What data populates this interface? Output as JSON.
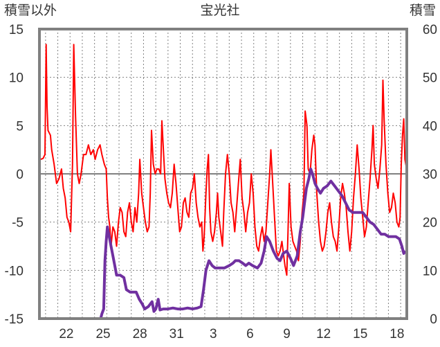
{
  "chart_data": {
    "type": "line",
    "title": "宝光社",
    "left_axis": {
      "label": "積雪以外",
      "min": -15,
      "max": 15,
      "ticks": [
        15,
        10,
        5,
        0,
        -5,
        -10,
        -15
      ]
    },
    "right_axis": {
      "label": "積雪",
      "min": 0,
      "max": 60,
      "ticks": [
        60,
        50,
        40,
        30,
        20,
        10,
        0
      ]
    },
    "x_tick_labels": [
      "22",
      "25",
      "28",
      "31",
      "3",
      "6",
      "9",
      "12",
      "15",
      "18"
    ],
    "x_ticks": [
      2.7,
      5.7,
      8.7,
      11.7,
      14.7,
      17.7,
      20.7,
      23.7,
      26.7,
      29.7
    ],
    "x_range": [
      0.5,
      30.5
    ],
    "grid": {
      "vertical": "daily dashed",
      "horizontal": "dashed"
    },
    "colors": {
      "temperature": "#ff0000",
      "snow_depth": "#7030a0",
      "frame": "#808080"
    },
    "series": [
      {
        "axis": "left",
        "values": [
          [
            0.6,
            1.5
          ],
          [
            0.8,
            1.6
          ],
          [
            0.95,
            2.0
          ],
          [
            1.05,
            13.4
          ],
          [
            1.12,
            7.0
          ],
          [
            1.2,
            4.5
          ],
          [
            1.4,
            4.0
          ],
          [
            1.5,
            2.5
          ],
          [
            1.7,
            1.0
          ],
          [
            1.9,
            -1.0
          ],
          [
            2.1,
            -0.5
          ],
          [
            2.3,
            0.5
          ],
          [
            2.45,
            -1.5
          ],
          [
            2.6,
            -2.5
          ],
          [
            2.75,
            -4.5
          ],
          [
            2.9,
            -5.0
          ],
          [
            3.05,
            -6.0
          ],
          [
            3.2,
            1.0
          ],
          [
            3.3,
            13.4
          ],
          [
            3.45,
            6.0
          ],
          [
            3.6,
            0.0
          ],
          [
            3.75,
            -1.0
          ],
          [
            3.9,
            0.0
          ],
          [
            4.1,
            2.0
          ],
          [
            4.3,
            2.0
          ],
          [
            4.5,
            3.0
          ],
          [
            4.7,
            2.0
          ],
          [
            4.9,
            2.5
          ],
          [
            5.05,
            1.5
          ],
          [
            5.25,
            2.5
          ],
          [
            5.45,
            3.0
          ],
          [
            5.6,
            2.0
          ],
          [
            5.8,
            1.0
          ],
          [
            5.95,
            0.5
          ],
          [
            6.05,
            -2.5
          ],
          [
            6.15,
            -4.5
          ],
          [
            6.25,
            -5.5
          ],
          [
            6.35,
            -7.5
          ],
          [
            6.5,
            -5.5
          ],
          [
            6.65,
            -6.0
          ],
          [
            6.8,
            -7.5
          ],
          [
            6.95,
            -5.0
          ],
          [
            7.1,
            -3.5
          ],
          [
            7.25,
            -4.0
          ],
          [
            7.4,
            -6.0
          ],
          [
            7.55,
            -6.5
          ],
          [
            7.7,
            -4.0
          ],
          [
            7.85,
            -3.0
          ],
          [
            8.0,
            -5.0
          ],
          [
            8.15,
            -6.0
          ],
          [
            8.3,
            -3.5
          ],
          [
            8.45,
            -5.0
          ],
          [
            8.6,
            -2.0
          ],
          [
            8.7,
            1.5
          ],
          [
            8.85,
            -2.0
          ],
          [
            9.0,
            -3.5
          ],
          [
            9.15,
            -5.0
          ],
          [
            9.3,
            -6.0
          ],
          [
            9.45,
            -5.5
          ],
          [
            9.55,
            -2.0
          ],
          [
            9.65,
            4.5
          ],
          [
            9.8,
            1.0
          ],
          [
            9.95,
            0.0
          ],
          [
            10.1,
            0.5
          ],
          [
            10.25,
            0.5
          ],
          [
            10.4,
            0.0
          ],
          [
            10.5,
            5.5
          ],
          [
            10.6,
            3.0
          ],
          [
            10.75,
            -0.5
          ],
          [
            10.9,
            -2.0
          ],
          [
            11.05,
            -3.0
          ],
          [
            11.2,
            -3.5
          ],
          [
            11.35,
            -2.0
          ],
          [
            11.5,
            1.0
          ],
          [
            11.65,
            -1.0
          ],
          [
            11.8,
            -3.5
          ],
          [
            11.95,
            -6.0
          ],
          [
            12.1,
            -5.5
          ],
          [
            12.25,
            -3.0
          ],
          [
            12.4,
            -2.5
          ],
          [
            12.55,
            -4.0
          ],
          [
            12.7,
            -4.5
          ],
          [
            12.85,
            -2.0
          ],
          [
            13.0,
            -1.5
          ],
          [
            13.15,
            0.0
          ],
          [
            13.3,
            -3.0
          ],
          [
            13.45,
            -4.5
          ],
          [
            13.6,
            -5.5
          ],
          [
            13.75,
            -5.0
          ],
          [
            13.85,
            -8.0
          ],
          [
            13.95,
            -6.5
          ],
          [
            14.1,
            -2.0
          ],
          [
            14.2,
            0.5
          ],
          [
            14.3,
            2.0
          ],
          [
            14.4,
            -3.5
          ],
          [
            14.5,
            -6.0
          ],
          [
            14.65,
            -7.0
          ],
          [
            14.8,
            -6.0
          ],
          [
            14.95,
            -4.0
          ],
          [
            15.05,
            -2.0
          ],
          [
            15.15,
            -4.5
          ],
          [
            15.3,
            -6.0
          ],
          [
            15.45,
            -7.5
          ],
          [
            15.55,
            -4.0
          ],
          [
            15.7,
            0.0
          ],
          [
            15.85,
            2.0
          ],
          [
            16.0,
            0.0
          ],
          [
            16.15,
            -3.0
          ],
          [
            16.3,
            -4.0
          ],
          [
            16.45,
            -6.0
          ],
          [
            16.6,
            -3.5
          ],
          [
            16.75,
            -1.0
          ],
          [
            16.9,
            1.5
          ],
          [
            17.05,
            -2.5
          ],
          [
            17.2,
            -4.0
          ],
          [
            17.35,
            -6.0
          ],
          [
            17.5,
            -4.0
          ],
          [
            17.65,
            -3.0
          ],
          [
            17.8,
            0.0
          ],
          [
            17.95,
            -2.0
          ],
          [
            18.1,
            -5.5
          ],
          [
            18.25,
            -7.5
          ],
          [
            18.4,
            -8.0
          ],
          [
            18.55,
            -6.5
          ],
          [
            18.7,
            -5.5
          ],
          [
            18.85,
            -7.0
          ],
          [
            19.0,
            -6.0
          ],
          [
            19.15,
            -3.0
          ],
          [
            19.3,
            0.0
          ],
          [
            19.4,
            2.5
          ],
          [
            19.55,
            -1.0
          ],
          [
            19.7,
            -4.5
          ],
          [
            19.85,
            -8.0
          ],
          [
            20.0,
            -8.5
          ],
          [
            20.15,
            -8.0
          ],
          [
            20.3,
            -7.0
          ],
          [
            20.4,
            -8.0
          ],
          [
            20.55,
            -9.5
          ],
          [
            20.7,
            -10.5
          ],
          [
            20.8,
            -6.0
          ],
          [
            20.9,
            -1.0
          ],
          [
            21.05,
            -5.5
          ],
          [
            21.2,
            -7.0
          ],
          [
            21.35,
            -7.5
          ],
          [
            21.5,
            -8.0
          ],
          [
            21.65,
            -9.0
          ],
          [
            21.8,
            -7.0
          ],
          [
            21.95,
            -4.0
          ],
          [
            22.1,
            -2.0
          ],
          [
            22.2,
            6.5
          ],
          [
            22.35,
            5.0
          ],
          [
            22.45,
            0.5
          ],
          [
            22.6,
            0.0
          ],
          [
            22.75,
            2.5
          ],
          [
            22.9,
            4.0
          ],
          [
            23.0,
            3.0
          ],
          [
            23.15,
            -2.0
          ],
          [
            23.3,
            -5.0
          ],
          [
            23.45,
            -7.0
          ],
          [
            23.6,
            -8.0
          ],
          [
            23.75,
            -7.5
          ],
          [
            23.9,
            -6.0
          ],
          [
            24.05,
            -4.0
          ],
          [
            24.2,
            -3.0
          ],
          [
            24.35,
            -5.0
          ],
          [
            24.5,
            -6.5
          ],
          [
            24.65,
            -7.0
          ],
          [
            24.8,
            -8.0
          ],
          [
            24.95,
            -5.5
          ],
          [
            25.1,
            -2.5
          ],
          [
            25.25,
            -1.0
          ],
          [
            25.4,
            -2.0
          ],
          [
            25.55,
            -3.5
          ],
          [
            25.7,
            -6.0
          ],
          [
            25.85,
            -8.0
          ],
          [
            26.0,
            -6.0
          ],
          [
            26.15,
            -2.5
          ],
          [
            26.3,
            0.0
          ],
          [
            26.45,
            3.0
          ],
          [
            26.6,
            0.5
          ],
          [
            26.75,
            -2.5
          ],
          [
            26.9,
            -4.5
          ],
          [
            27.05,
            -6.5
          ],
          [
            27.2,
            -5.5
          ],
          [
            27.35,
            -3.0
          ],
          [
            27.5,
            -0.5
          ],
          [
            27.65,
            2.5
          ],
          [
            27.75,
            5.0
          ],
          [
            27.85,
            1.0
          ],
          [
            28.0,
            -0.5
          ],
          [
            28.15,
            -1.5
          ],
          [
            28.3,
            0.5
          ],
          [
            28.45,
            3.0
          ],
          [
            28.55,
            9.7
          ],
          [
            28.65,
            5.5
          ],
          [
            28.8,
            1.0
          ],
          [
            28.95,
            -2.0
          ],
          [
            29.1,
            -4.0
          ],
          [
            29.25,
            -3.5
          ],
          [
            29.4,
            -2.0
          ],
          [
            29.55,
            -3.0
          ],
          [
            29.7,
            -5.0
          ],
          [
            29.85,
            -5.5
          ],
          [
            29.95,
            -4.5
          ],
          [
            30.05,
            1.0
          ],
          [
            30.15,
            4.0
          ],
          [
            30.25,
            5.7
          ],
          [
            30.35,
            1.5
          ],
          [
            30.45,
            0.8
          ]
        ]
      },
      {
        "axis": "right",
        "values": [
          [
            0.5,
            0
          ],
          [
            5.5,
            0
          ],
          [
            5.6,
            1
          ],
          [
            5.75,
            2
          ],
          [
            5.85,
            12
          ],
          [
            5.95,
            16
          ],
          [
            6.05,
            19
          ],
          [
            6.2,
            17
          ],
          [
            6.35,
            15
          ],
          [
            6.5,
            13
          ],
          [
            6.65,
            11
          ],
          [
            6.8,
            9
          ],
          [
            7.1,
            9
          ],
          [
            7.4,
            8.5
          ],
          [
            7.6,
            6
          ],
          [
            7.9,
            5.5
          ],
          [
            8.4,
            5.5
          ],
          [
            8.65,
            4
          ],
          [
            8.9,
            3
          ],
          [
            9.1,
            2
          ],
          [
            9.4,
            2.5
          ],
          [
            9.7,
            3.5
          ],
          [
            9.85,
            1.5
          ],
          [
            10.0,
            2
          ],
          [
            10.2,
            4
          ],
          [
            10.35,
            1.8
          ],
          [
            10.6,
            2
          ],
          [
            11.0,
            2
          ],
          [
            11.4,
            2.2
          ],
          [
            11.8,
            2
          ],
          [
            12.2,
            2
          ],
          [
            12.6,
            2.2
          ],
          [
            13.0,
            2
          ],
          [
            13.4,
            2.2
          ],
          [
            13.7,
            2.5
          ],
          [
            13.9,
            6
          ],
          [
            14.1,
            10
          ],
          [
            14.35,
            12
          ],
          [
            14.6,
            11
          ],
          [
            14.85,
            10.5
          ],
          [
            15.2,
            10.5
          ],
          [
            15.6,
            10.5
          ],
          [
            16.0,
            11
          ],
          [
            16.3,
            11.5
          ],
          [
            16.5,
            12
          ],
          [
            16.8,
            12
          ],
          [
            17.1,
            11.5
          ],
          [
            17.35,
            11
          ],
          [
            17.6,
            11.5
          ],
          [
            17.9,
            11
          ],
          [
            18.3,
            10.5
          ],
          [
            18.6,
            11.5
          ],
          [
            18.85,
            14
          ],
          [
            19.05,
            17
          ],
          [
            19.3,
            16
          ],
          [
            19.6,
            14
          ],
          [
            19.9,
            12.5
          ],
          [
            20.15,
            12
          ],
          [
            20.4,
            13.5
          ],
          [
            20.7,
            14
          ],
          [
            21.0,
            12.5
          ],
          [
            21.25,
            11
          ],
          [
            21.55,
            13
          ],
          [
            21.8,
            18
          ],
          [
            22.0,
            21
          ],
          [
            22.15,
            24
          ],
          [
            22.3,
            27
          ],
          [
            22.5,
            29
          ],
          [
            22.65,
            31
          ],
          [
            22.8,
            30
          ],
          [
            23.0,
            28
          ],
          [
            23.2,
            27
          ],
          [
            23.45,
            26
          ],
          [
            23.7,
            27
          ],
          [
            24.0,
            27.5
          ],
          [
            24.3,
            28.5
          ],
          [
            24.6,
            27.5
          ],
          [
            24.9,
            26.5
          ],
          [
            25.2,
            25.5
          ],
          [
            25.5,
            24
          ],
          [
            25.8,
            22.5
          ],
          [
            26.1,
            22
          ],
          [
            26.5,
            22
          ],
          [
            26.9,
            22
          ],
          [
            27.2,
            21
          ],
          [
            27.5,
            20
          ],
          [
            27.8,
            19.5
          ],
          [
            28.1,
            18.5
          ],
          [
            28.4,
            17.5
          ],
          [
            28.7,
            17.5
          ],
          [
            29.0,
            17
          ],
          [
            29.3,
            17
          ],
          [
            29.6,
            17
          ],
          [
            29.9,
            16.5
          ],
          [
            30.1,
            15
          ],
          [
            30.25,
            13.5
          ],
          [
            30.4,
            14
          ]
        ]
      }
    ]
  }
}
